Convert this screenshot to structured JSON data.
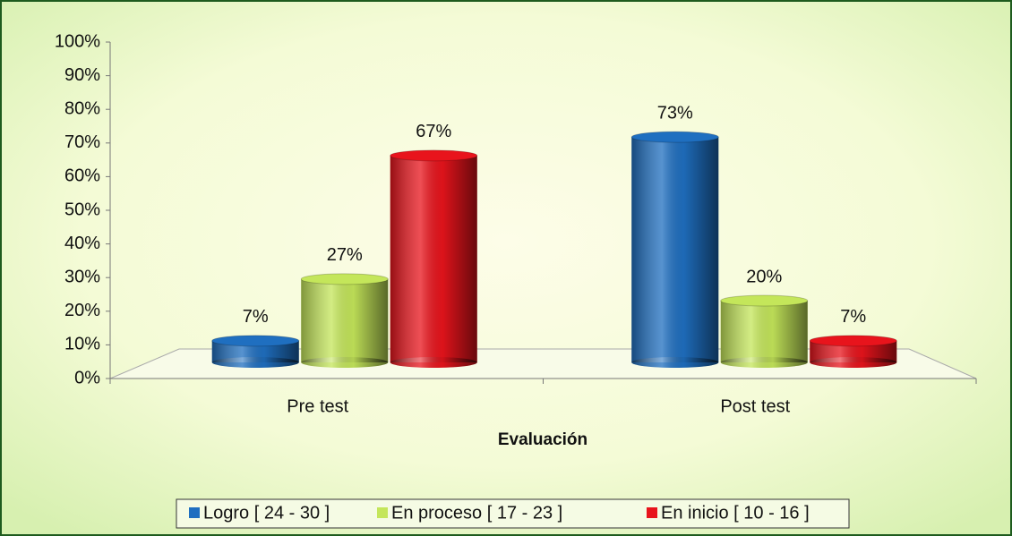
{
  "chart_data": {
    "type": "bar",
    "x_label": "Evaluación",
    "categories": [
      "Pre test",
      "Post test"
    ],
    "series": [
      {
        "name": "Logro [ 24 - 30 ]",
        "color": "#1f6fc0",
        "values": [
          7,
          73
        ],
        "value_labels": [
          "7%",
          "73%"
        ]
      },
      {
        "name": "En proceso [ 17 - 23 ]",
        "color": "#c4e65a",
        "values": [
          27,
          20
        ],
        "value_labels": [
          "27%",
          "20%"
        ]
      },
      {
        "name": "En inicio [ 10 - 16 ]",
        "color": "#e8141c",
        "values": [
          67,
          7
        ],
        "value_labels": [
          "67%",
          "7%"
        ]
      }
    ],
    "ylim": [
      0,
      100
    ],
    "yticks": [
      {
        "value": 0,
        "label": "0%"
      },
      {
        "value": 10,
        "label": "10%"
      },
      {
        "value": 20,
        "label": "20%"
      },
      {
        "value": 30,
        "label": "30%"
      },
      {
        "value": 40,
        "label": "40%"
      },
      {
        "value": 50,
        "label": "50%"
      },
      {
        "value": 60,
        "label": "60%"
      },
      {
        "value": 70,
        "label": "70%"
      },
      {
        "value": 80,
        "label": "80%"
      },
      {
        "value": 90,
        "label": "90%"
      },
      {
        "value": 100,
        "label": "100%"
      }
    ],
    "legend": "bottom"
  }
}
